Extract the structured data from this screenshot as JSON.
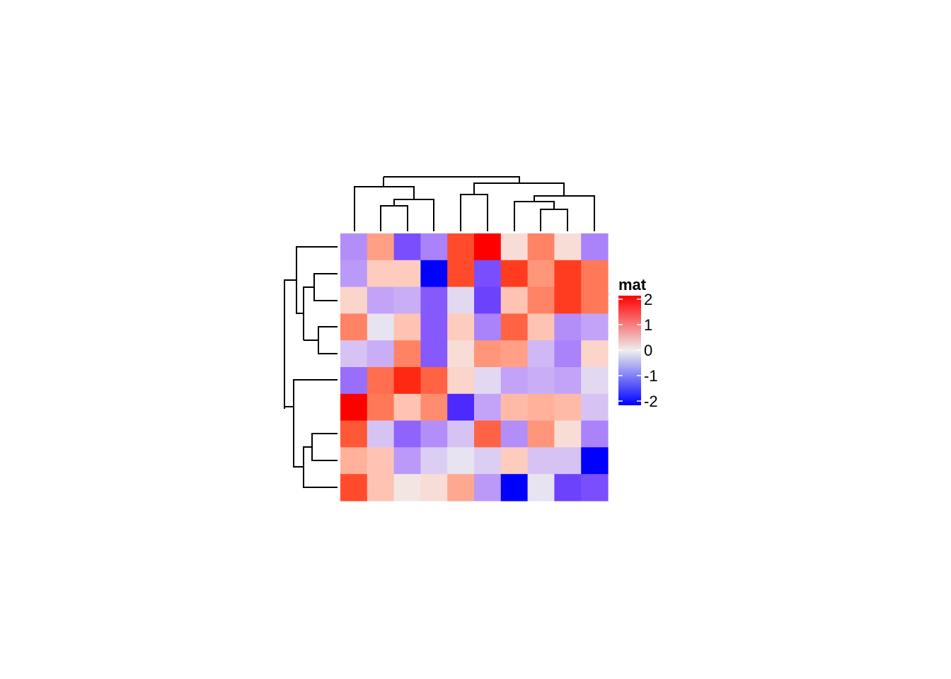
{
  "chart_data": {
    "type": "heatmap",
    "title": "",
    "xlabel": "",
    "ylabel": "",
    "rows": 10,
    "cols": 10,
    "values": [
      [
        -0.9,
        0.9,
        -1.5,
        -1.0,
        1.7,
        2.0,
        0.2,
        1.2,
        0.2,
        -1.0
      ],
      [
        -0.8,
        0.4,
        0.4,
        -2.0,
        1.7,
        -1.5,
        1.8,
        1.0,
        1.8,
        1.3
      ],
      [
        0.3,
        -0.7,
        -0.6,
        -1.4,
        -0.2,
        -1.6,
        0.5,
        1.2,
        1.8,
        1.3
      ],
      [
        1.2,
        -0.1,
        0.5,
        -1.4,
        0.4,
        -1.0,
        1.5,
        0.5,
        -0.9,
        -0.7
      ],
      [
        -0.4,
        -0.6,
        1.2,
        -1.4,
        0.2,
        1.0,
        0.9,
        -0.5,
        -1.0,
        0.3
      ],
      [
        -1.2,
        1.4,
        1.9,
        1.5,
        0.3,
        -0.2,
        -0.7,
        -0.6,
        -0.7,
        -0.2
      ],
      [
        2.0,
        1.3,
        0.5,
        1.1,
        -1.8,
        -0.7,
        0.6,
        0.7,
        0.6,
        -0.4
      ],
      [
        1.6,
        -0.4,
        -1.3,
        -0.9,
        -0.4,
        1.5,
        -0.9,
        1.0,
        0.2,
        -1.0
      ],
      [
        0.7,
        0.5,
        -0.8,
        -0.3,
        -0.1,
        -0.3,
        0.4,
        -0.4,
        -0.4,
        -2.3
      ],
      [
        1.7,
        0.5,
        0.1,
        0.2,
        0.8,
        -0.8,
        -2.1,
        -0.1,
        -1.6,
        -1.5
      ]
    ],
    "color_scale": {
      "low": "#0000FF",
      "mid": "#EEEEEE",
      "high": "#FF0000",
      "domain": [
        -2,
        0,
        2
      ]
    },
    "legend": {
      "title": "mat",
      "ticks": [
        "2",
        "1",
        "0",
        "-1",
        "-2"
      ],
      "placement": "right"
    },
    "row_dendrogram": true,
    "column_dendrogram": true,
    "grid": false
  }
}
